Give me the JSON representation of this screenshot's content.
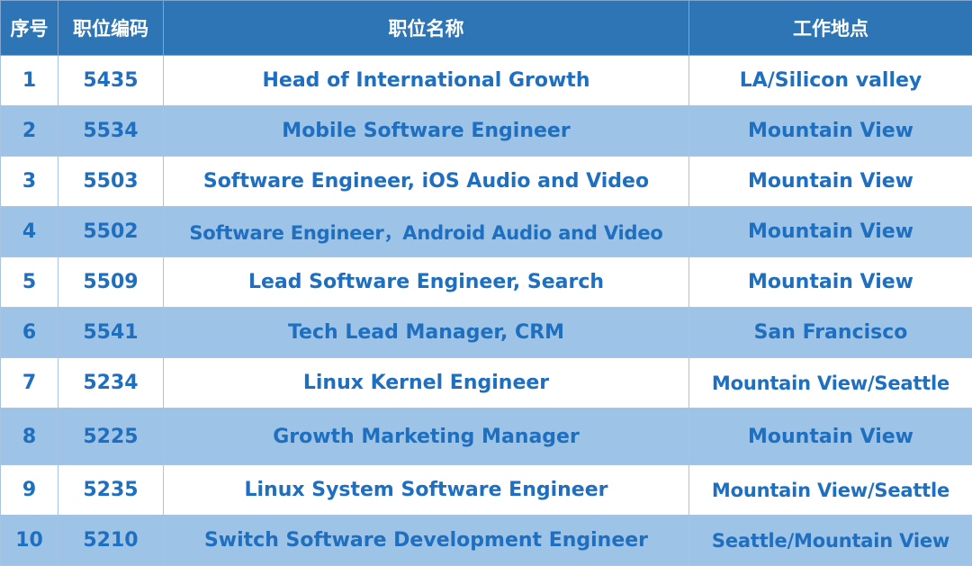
{
  "colors": {
    "header_bg": "#2e75b6",
    "header_text": "#ffffff",
    "cell_text": "#1f6fc0",
    "row_alt_bg": "#9dc3e6",
    "row_bg": "#ffffff"
  },
  "table": {
    "headers": [
      "序号",
      "职位编码",
      "职位名称",
      "工作地点"
    ],
    "rows": [
      {
        "no": "1",
        "code": "5435",
        "title": "Head of International Growth",
        "location": "LA/Silicon valley"
      },
      {
        "no": "2",
        "code": "5534",
        "title": "Mobile Software Engineer",
        "location": "Mountain View"
      },
      {
        "no": "3",
        "code": "5503",
        "title": "Software Engineer, iOS Audio and Video",
        "location": "Mountain View"
      },
      {
        "no": "4",
        "code": "5502",
        "title": "Software Engineer，Android Audio and Video",
        "location": "Mountain View"
      },
      {
        "no": "5",
        "code": "5509",
        "title": "Lead Software Engineer, Search",
        "location": "Mountain View"
      },
      {
        "no": "6",
        "code": "5541",
        "title": "Tech Lead Manager, CRM",
        "location": "San Francisco"
      },
      {
        "no": "7",
        "code": "5234",
        "title": "Linux Kernel Engineer",
        "location": "Mountain View/Seattle"
      },
      {
        "no": "8",
        "code": "5225",
        "title": "Growth Marketing Manager",
        "location": "Mountain View"
      },
      {
        "no": "9",
        "code": "5235",
        "title": "Linux System Software Engineer",
        "location": "Mountain View/Seattle"
      },
      {
        "no": "10",
        "code": "5210",
        "title": "Switch Software Development Engineer",
        "location": "Seattle/Mountain View"
      }
    ]
  }
}
